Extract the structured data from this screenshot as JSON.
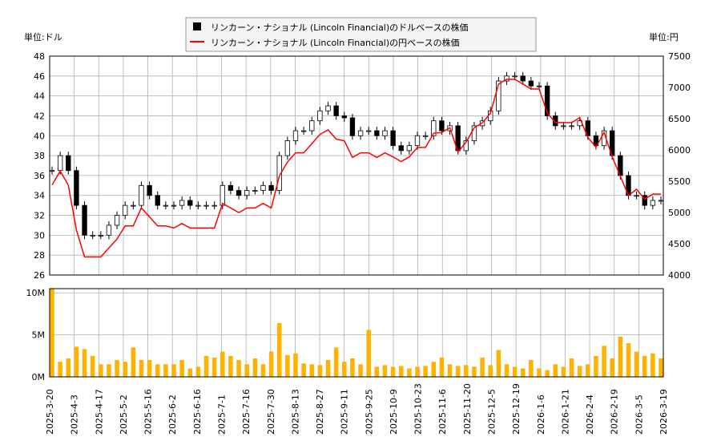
{
  "chart_data": {
    "type": "candlestick+line+bar",
    "legend": {
      "placement": "top-center",
      "items": [
        {
          "label": "リンカーン・ナショナル (Lincoln Financial)のドルベースの株価",
          "color": "#000000",
          "marker": "square"
        },
        {
          "label": "リンカーン・ナショナル (Lincoln Financial)の円ベースの株価",
          "color": "#ff0000",
          "marker": "line"
        }
      ]
    },
    "left_unit": "単位:ドル",
    "right_unit": "単位:円",
    "left_ylim": [
      26,
      48
    ],
    "left_ticks": [
      "26",
      "28",
      "30",
      "32",
      "34",
      "36",
      "38",
      "40",
      "42",
      "44",
      "46",
      "48"
    ],
    "right_ylim": [
      4000,
      7500
    ],
    "right_ticks": [
      "4000",
      "4500",
      "5000",
      "5500",
      "6000",
      "6500",
      "7000",
      "7500"
    ],
    "volume_ylim": [
      0,
      10.5
    ],
    "volume_ticks": [
      "0M",
      "5M",
      "10M"
    ],
    "grid": true,
    "x_ticks": [
      "2025-3-20",
      "2025-4-3",
      "2025-4-17",
      "2025-5-2",
      "2025-5-16",
      "2025-6-2",
      "2025-6-16",
      "2025-7-1",
      "2025-7-16",
      "2025-7-30",
      "2025-8-13",
      "2025-8-27",
      "2025-9-11",
      "2025-9-25",
      "2025-10-9",
      "2025-10-23",
      "2025-11-6",
      "2025-11-20",
      "2025-12-5",
      "2025-12-19",
      "2026-1-6",
      "2026-1-21",
      "2026-2-4",
      "2026-2-19",
      "2026-3-5",
      "2026-3-19"
    ],
    "usd_close": [
      36.5,
      38,
      36.5,
      33,
      30,
      30,
      30,
      31,
      32,
      33,
      33,
      35,
      34,
      33,
      33,
      33,
      33.5,
      33,
      33,
      33,
      33,
      35,
      34.5,
      34,
      34.5,
      34.5,
      35,
      34.5,
      38,
      39.5,
      40.5,
      40.5,
      41.5,
      42.5,
      43,
      42,
      41.8,
      40,
      40.5,
      40.5,
      40,
      40.5,
      39,
      38.5,
      39,
      40,
      40,
      41.5,
      40.5,
      41,
      38.5,
      39.5,
      41,
      41.5,
      42.5,
      45.5,
      46,
      46,
      45.5,
      45,
      45,
      42,
      41,
      41,
      41,
      41.5,
      40,
      39,
      40.5,
      38,
      36,
      34,
      34,
      33,
      33.5,
      33.5
    ],
    "jpy_close": [
      5439,
      5662,
      5439,
      4719,
      4290,
      4290,
      4290,
      4433,
      4576,
      4785,
      4785,
      5075,
      4930,
      4785,
      4785,
      4752,
      4824,
      4752,
      4752,
      4752,
      4752,
      5145,
      5072,
      4998,
      5072,
      5072,
      5145,
      5072,
      5586,
      5807,
      5954,
      5954,
      6101,
      6248,
      6321,
      6174,
      6145,
      5880,
      5954,
      5954,
      5880,
      5954,
      5889,
      5814,
      5889,
      6040,
      6040,
      6267,
      6278,
      6355,
      5968,
      6123,
      6355,
      6433,
      6588,
      7053,
      7130,
      7130,
      7053,
      6975,
      6975,
      6594,
      6437,
      6437,
      6437,
      6516,
      6200,
      6045,
      6278,
      5890,
      5580,
      5270,
      5372,
      5214,
      5293,
      5293
    ],
    "volume_m": [
      10.5,
      1.8,
      2.2,
      3.6,
      3.3,
      2.5,
      1.5,
      1.5,
      2,
      1.8,
      3.5,
      2,
      2,
      1.5,
      1.5,
      1.5,
      2,
      1,
      1.2,
      2.5,
      2.3,
      3,
      2.5,
      2,
      1.5,
      2.2,
      1.5,
      3,
      6.4,
      2.6,
      2.8,
      1.6,
      1.5,
      1.4,
      2,
      3.5,
      1.8,
      2.2,
      1.5,
      5.6,
      1.2,
      1.4,
      1.2,
      1.3,
      1,
      1.2,
      1.3,
      1.8,
      2.3,
      1.5,
      1.3,
      1.4,
      1.2,
      2.3,
      1.4,
      3.2,
      1.5,
      1.2,
      1,
      2,
      1,
      0.8,
      1.5,
      1.2,
      2.2,
      1.3,
      1.5,
      2.5,
      3.7,
      2.2,
      4.8,
      4,
      3,
      2.5,
      2.8,
      2.2
    ],
    "colors": {
      "usd": "#000000",
      "jpy": "#ff0000",
      "volume": "#ffb300",
      "grid": "#b0b0b0"
    }
  }
}
